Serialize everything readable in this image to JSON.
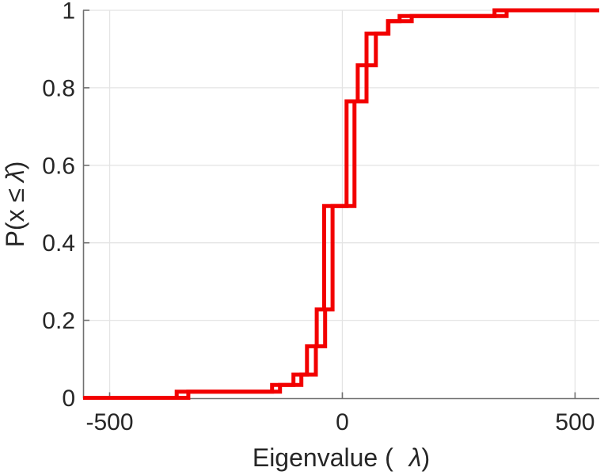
{
  "figure": {
    "background": "#ffffff",
    "text_color": "#262626",
    "axis_color": "#707070",
    "grid_color": "#e4e4e4"
  },
  "chart_data": {
    "type": "line",
    "subtype": "ecdf-step",
    "title": "",
    "xlabel": "Eigenvalue ( λ)",
    "ylabel": "P(x ≤ λ̂)",
    "xlabel_parts": {
      "prefix": "Eigenvalue (",
      "math": "λ",
      "suffix": ")"
    },
    "ylabel_parts": {
      "prefix": "P(x ≤",
      "math": "λ̂",
      "suffix": ")"
    },
    "xlim": [
      -557,
      552
    ],
    "ylim": [
      0,
      1
    ],
    "x_ticks": [
      -500,
      0,
      500
    ],
    "x_tick_labels": [
      "-500",
      "0",
      "500"
    ],
    "y_ticks": [
      0,
      0.2,
      0.4,
      0.6,
      0.8,
      1
    ],
    "y_tick_labels": [
      "0",
      "0.2",
      "0.4",
      "0.6",
      "0.8",
      "1"
    ],
    "grid": true,
    "legend": null,
    "line_color": "#f20000",
    "line_width": 5,
    "series": [
      {
        "name": "ecdf-curve-1",
        "description": "empirical CDF step curve (left/lower of the pair)",
        "start_value": 0,
        "points": [
          [
            -356,
            0.016
          ],
          [
            -151,
            0.033
          ],
          [
            -105,
            0.06
          ],
          [
            -76,
            0.133
          ],
          [
            -55,
            0.228
          ],
          [
            -39,
            0.495
          ],
          [
            9,
            0.765
          ],
          [
            33,
            0.858
          ],
          [
            72,
            0.94
          ],
          [
            98,
            0.972
          ],
          [
            123,
            0.985
          ],
          [
            327,
            1.0
          ]
        ]
      },
      {
        "name": "ecdf-curve-2",
        "description": "empirical CDF step curve (right/upper of the pair)",
        "start_value": 0,
        "points": [
          [
            -331,
            0.016
          ],
          [
            -134,
            0.033
          ],
          [
            -88,
            0.06
          ],
          [
            -57,
            0.133
          ],
          [
            -37,
            0.228
          ],
          [
            -21,
            0.495
          ],
          [
            26,
            0.765
          ],
          [
            52,
            0.94
          ],
          [
            99,
            0.972
          ],
          [
            149,
            0.985
          ],
          [
            353,
            1.0
          ]
        ]
      }
    ]
  }
}
